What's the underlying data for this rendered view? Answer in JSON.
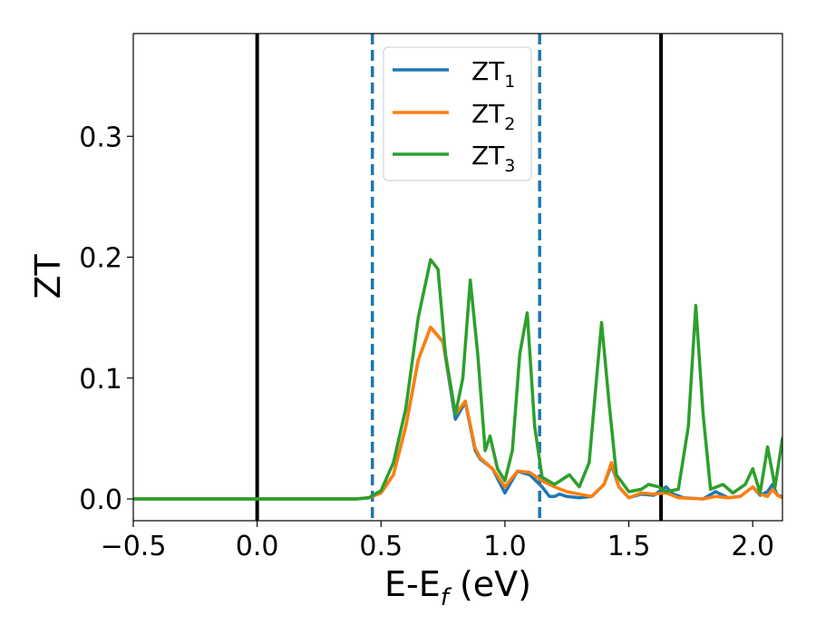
{
  "chart_data": {
    "type": "line",
    "xlabel_main": "E-E",
    "xlabel_sub": "f",
    "xlabel_tail": " (eV)",
    "ylabel": "ZT",
    "xlim": [
      -0.5,
      2.12
    ],
    "ylim": [
      -0.018,
      0.385
    ],
    "xticks": [
      -0.5,
      0.0,
      0.5,
      1.0,
      1.5,
      2.0
    ],
    "xtick_labels": [
      "−0.5",
      "0.0",
      "0.5",
      "1.0",
      "1.5",
      "2.0"
    ],
    "yticks": [
      0.0,
      0.1,
      0.2,
      0.3
    ],
    "ytick_labels": [
      "0.0",
      "0.1",
      "0.2",
      "0.3"
    ],
    "grid": false,
    "legend_position": "top-center",
    "vlines": [
      {
        "x": 0.0,
        "style": "solid",
        "color": "#000000"
      },
      {
        "x": 1.63,
        "style": "solid",
        "color": "#000000"
      },
      {
        "x": 0.465,
        "style": "dashed",
        "color": "#1f77b4"
      },
      {
        "x": 1.14,
        "style": "dashed",
        "color": "#1f77b4"
      }
    ],
    "series": [
      {
        "name_main": "ZT",
        "name_sub": "1",
        "color": "#1f77b4",
        "points": [
          [
            -0.5,
            0
          ],
          [
            0.4,
            0
          ],
          [
            0.45,
            0.001
          ],
          [
            0.5,
            0.005
          ],
          [
            0.55,
            0.02
          ],
          [
            0.6,
            0.06
          ],
          [
            0.65,
            0.115
          ],
          [
            0.7,
            0.142
          ],
          [
            0.75,
            0.13
          ],
          [
            0.8,
            0.066
          ],
          [
            0.84,
            0.08
          ],
          [
            0.88,
            0.04
          ],
          [
            0.9,
            0.033
          ],
          [
            0.95,
            0.025
          ],
          [
            1.0,
            0.005
          ],
          [
            1.05,
            0.023
          ],
          [
            1.1,
            0.02
          ],
          [
            1.15,
            0.01
          ],
          [
            1.18,
            0.002
          ],
          [
            1.2,
            0.002
          ],
          [
            1.22,
            0.004
          ],
          [
            1.25,
            0.002
          ],
          [
            1.3,
            0.001
          ],
          [
            1.35,
            0.002
          ],
          [
            1.4,
            0.012
          ],
          [
            1.43,
            0.028
          ],
          [
            1.46,
            0.01
          ],
          [
            1.5,
            0.001
          ],
          [
            1.55,
            0.004
          ],
          [
            1.6,
            0.003
          ],
          [
            1.65,
            0.01
          ],
          [
            1.68,
            0.004
          ],
          [
            1.72,
            0.001
          ],
          [
            1.8,
            0.0
          ],
          [
            1.85,
            0.006
          ],
          [
            1.9,
            0.001
          ],
          [
            1.95,
            0.002
          ],
          [
            2.0,
            0.01
          ],
          [
            2.03,
            0.003
          ],
          [
            2.06,
            0.006
          ],
          [
            2.08,
            0.012
          ],
          [
            2.1,
            0.003
          ],
          [
            2.12,
            0.002
          ]
        ]
      },
      {
        "name_main": "ZT",
        "name_sub": "2",
        "color": "#ff7f0e",
        "points": [
          [
            -0.5,
            0
          ],
          [
            0.4,
            0
          ],
          [
            0.45,
            0.001
          ],
          [
            0.5,
            0.005
          ],
          [
            0.55,
            0.02
          ],
          [
            0.6,
            0.06
          ],
          [
            0.65,
            0.115
          ],
          [
            0.7,
            0.142
          ],
          [
            0.75,
            0.13
          ],
          [
            0.8,
            0.07
          ],
          [
            0.84,
            0.081
          ],
          [
            0.88,
            0.042
          ],
          [
            0.9,
            0.034
          ],
          [
            0.95,
            0.025
          ],
          [
            1.0,
            0.01
          ],
          [
            1.05,
            0.023
          ],
          [
            1.1,
            0.022
          ],
          [
            1.15,
            0.015
          ],
          [
            1.2,
            0.01
          ],
          [
            1.25,
            0.006
          ],
          [
            1.3,
            0.004
          ],
          [
            1.35,
            0.002
          ],
          [
            1.4,
            0.012
          ],
          [
            1.43,
            0.03
          ],
          [
            1.46,
            0.01
          ],
          [
            1.5,
            0.001
          ],
          [
            1.55,
            0.005
          ],
          [
            1.6,
            0.004
          ],
          [
            1.65,
            0.005
          ],
          [
            1.7,
            0.001
          ],
          [
            1.8,
            0.0
          ],
          [
            1.85,
            0.002
          ],
          [
            1.9,
            0.001
          ],
          [
            1.95,
            0.002
          ],
          [
            2.0,
            0.01
          ],
          [
            2.03,
            0.004
          ],
          [
            2.06,
            0.002
          ],
          [
            2.08,
            0.008
          ],
          [
            2.1,
            0.003
          ],
          [
            2.12,
            0.001
          ]
        ]
      },
      {
        "name_main": "ZT",
        "name_sub": "3",
        "color": "#2ca02c",
        "points": [
          [
            -0.5,
            0
          ],
          [
            0.4,
            0
          ],
          [
            0.45,
            0.001
          ],
          [
            0.5,
            0.007
          ],
          [
            0.55,
            0.03
          ],
          [
            0.6,
            0.075
          ],
          [
            0.65,
            0.15
          ],
          [
            0.7,
            0.198
          ],
          [
            0.73,
            0.19
          ],
          [
            0.76,
            0.12
          ],
          [
            0.8,
            0.07
          ],
          [
            0.83,
            0.1
          ],
          [
            0.86,
            0.181
          ],
          [
            0.89,
            0.12
          ],
          [
            0.92,
            0.04
          ],
          [
            0.94,
            0.052
          ],
          [
            0.97,
            0.025
          ],
          [
            1.0,
            0.015
          ],
          [
            1.03,
            0.04
          ],
          [
            1.06,
            0.12
          ],
          [
            1.09,
            0.154
          ],
          [
            1.12,
            0.06
          ],
          [
            1.15,
            0.018
          ],
          [
            1.2,
            0.012
          ],
          [
            1.26,
            0.02
          ],
          [
            1.3,
            0.01
          ],
          [
            1.34,
            0.03
          ],
          [
            1.37,
            0.1
          ],
          [
            1.39,
            0.146
          ],
          [
            1.42,
            0.08
          ],
          [
            1.45,
            0.02
          ],
          [
            1.5,
            0.006
          ],
          [
            1.55,
            0.008
          ],
          [
            1.58,
            0.012
          ],
          [
            1.62,
            0.01
          ],
          [
            1.65,
            0.006
          ],
          [
            1.7,
            0.008
          ],
          [
            1.74,
            0.06
          ],
          [
            1.77,
            0.16
          ],
          [
            1.8,
            0.07
          ],
          [
            1.83,
            0.008
          ],
          [
            1.88,
            0.012
          ],
          [
            1.92,
            0.005
          ],
          [
            1.97,
            0.012
          ],
          [
            2.0,
            0.025
          ],
          [
            2.03,
            0.005
          ],
          [
            2.06,
            0.043
          ],
          [
            2.09,
            0.01
          ],
          [
            2.12,
            0.05
          ]
        ]
      }
    ]
  }
}
